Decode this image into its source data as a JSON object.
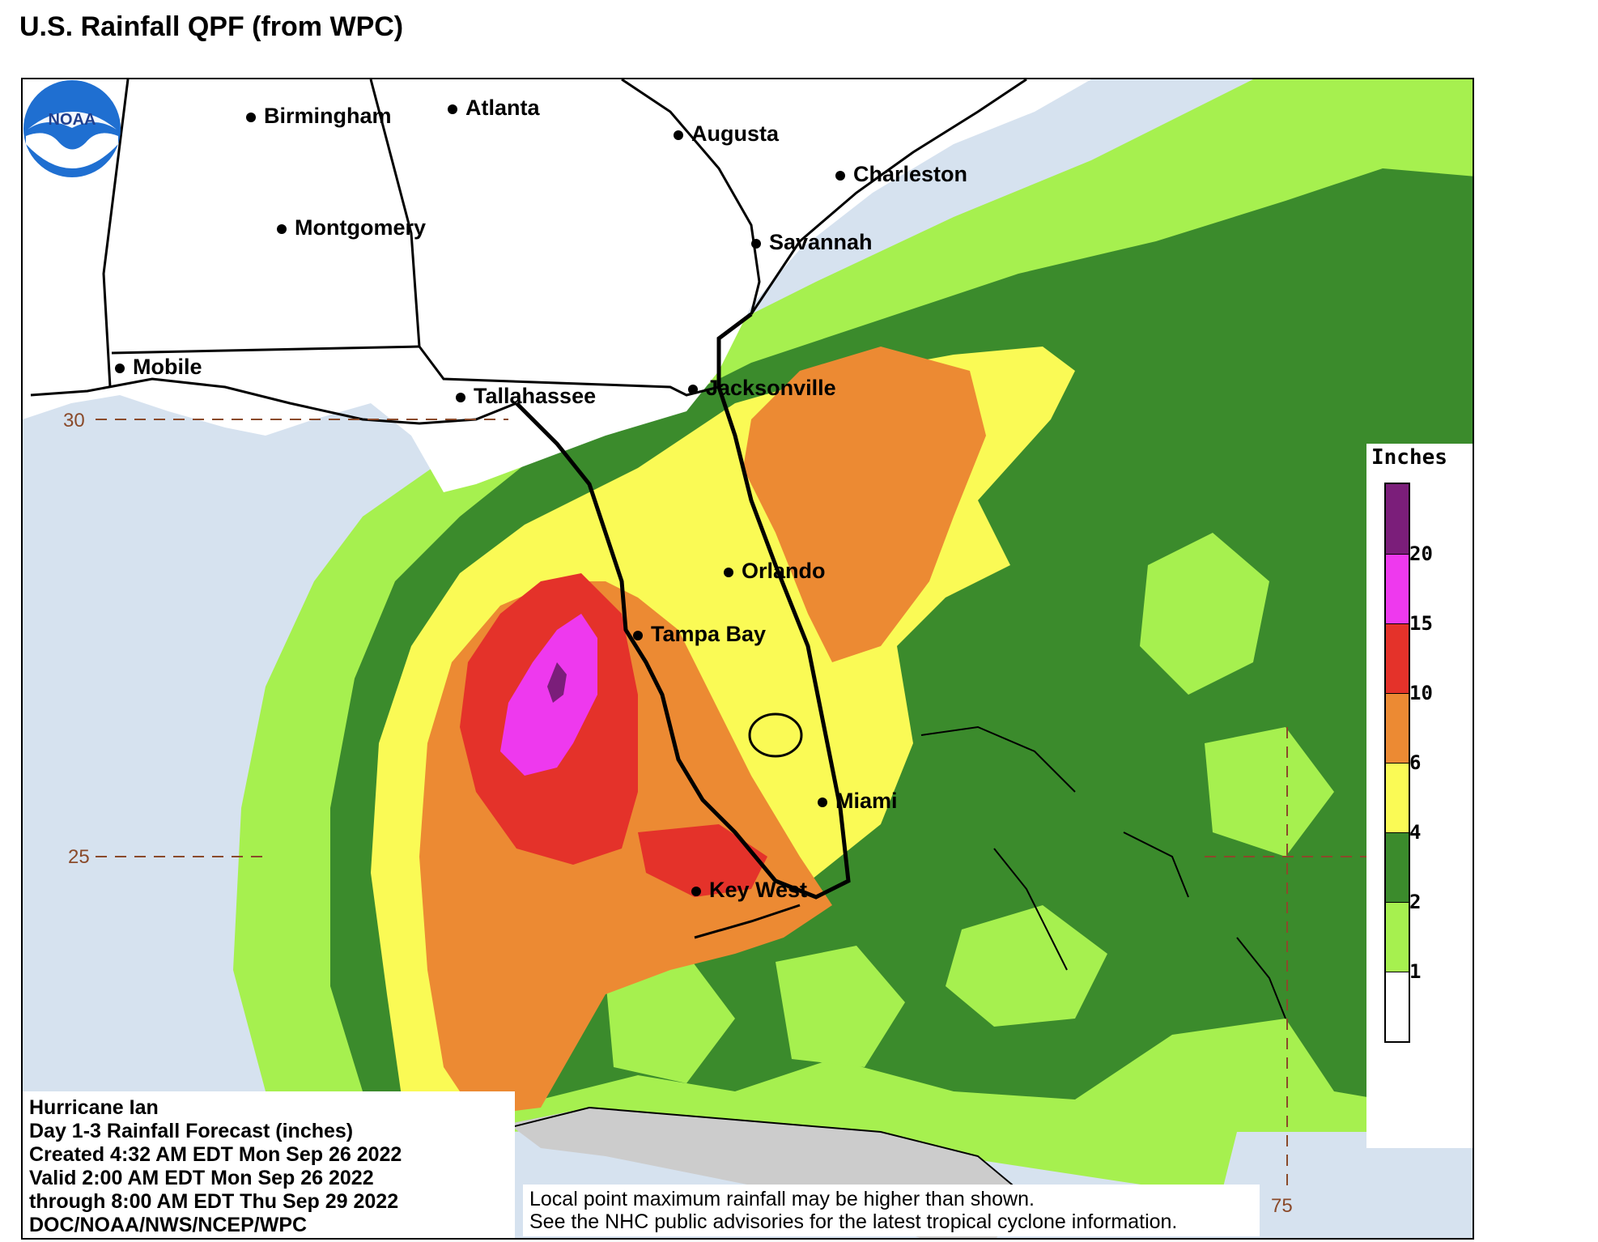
{
  "page": {
    "title": "U.S. Rainfall QPF (from WPC)"
  },
  "map": {
    "cities": [
      {
        "id": "birmingham",
        "name": "Birmingham"
      },
      {
        "id": "atlanta",
        "name": "Atlanta"
      },
      {
        "id": "augusta",
        "name": "Augusta"
      },
      {
        "id": "charleston",
        "name": "Charleston"
      },
      {
        "id": "montgomery",
        "name": "Montgomery"
      },
      {
        "id": "savannah",
        "name": "Savannah"
      },
      {
        "id": "mobile",
        "name": "Mobile"
      },
      {
        "id": "tallahassee",
        "name": "Tallahassee"
      },
      {
        "id": "jacksonville",
        "name": "Jacksonville"
      },
      {
        "id": "orlando",
        "name": "Orlando"
      },
      {
        "id": "tampa_bay",
        "name": "Tampa Bay"
      },
      {
        "id": "miami",
        "name": "Miami"
      },
      {
        "id": "key_west",
        "name": "Key West"
      }
    ],
    "lat_labels": [
      "30",
      "25"
    ],
    "lon_labels": [
      "75"
    ]
  },
  "legend": {
    "title": "Inches",
    "bins": [
      {
        "label": "",
        "color": "#7b1e7a"
      },
      {
        "label": "20",
        "color": "#ee39ee"
      },
      {
        "label": "15",
        "color": "#e4322a"
      },
      {
        "label": "10",
        "color": "#ec8a33"
      },
      {
        "label": "6",
        "color": "#fafa55"
      },
      {
        "label": "4",
        "color": "#3b8b2c"
      },
      {
        "label": "2",
        "color": "#a6f04f"
      },
      {
        "label": "1",
        "color": "#ffffff"
      }
    ]
  },
  "info": {
    "lines": [
      "Hurricane Ian",
      "Day 1-3 Rainfall Forecast (inches)",
      "Created 4:32 AM EDT Mon Sep 26 2022",
      "Valid 2:00 AM EDT Mon Sep 26 2022",
      "through 8:00 AM EDT Thu Sep 29 2022",
      "DOC/NOAA/NWS/NCEP/WPC"
    ]
  },
  "disclaimer": {
    "line1": "Local point maximum rainfall may be higher than shown.",
    "line2": "See the NHC public advisories for the latest tropical cyclone information."
  },
  "logo": {
    "text": "NOAA"
  },
  "colors": {
    "ocean": "#d6e2ef",
    "land": "#ffffff",
    "light_green": "#a6f04f",
    "dark_green": "#3b8b2c",
    "yellow": "#fafa55",
    "orange": "#ec8a33",
    "red": "#e4322a",
    "magenta": "#ee39ee",
    "purple": "#7b1e7a",
    "gray_land": "#cccccc",
    "grid": "#8a4a2a"
  }
}
